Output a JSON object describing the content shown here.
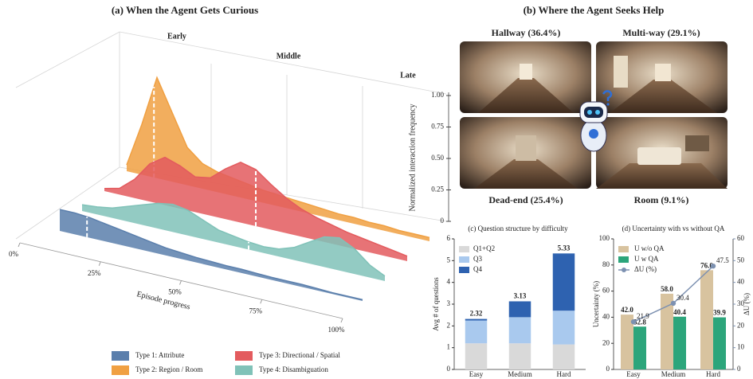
{
  "chart_data": [
    {
      "type": "ridge",
      "title": "(a) When the Agent Gets Curious",
      "x_label": "Episode progress",
      "y_label": "Normalized interaction frequency",
      "annotations": [
        "Early",
        "Middle",
        "Late"
      ],
      "x": [
        0,
        5,
        10,
        15,
        20,
        25,
        30,
        35,
        40,
        45,
        50,
        55,
        60,
        65,
        70,
        75,
        80,
        85,
        90,
        95,
        100
      ],
      "xlim": [
        0,
        100
      ],
      "xticks": [
        {
          "value": 0,
          "label": "0%"
        },
        {
          "value": 25,
          "label": "25%"
        },
        {
          "value": 50,
          "label": "50%"
        },
        {
          "value": 75,
          "label": "75%"
        },
        {
          "value": 100,
          "label": "100%"
        }
      ],
      "ylim": [
        0,
        1
      ],
      "yticks": [
        0,
        0.25,
        {
          "value": 0.5,
          "label": "0.50"
        },
        0.75,
        {
          "value": 1,
          "label": "1.00"
        }
      ],
      "series": [
        {
          "name": "Type 1: Attribute",
          "color": "#5b7fac",
          "median": 9,
          "values": [
            0.17,
            0.17,
            0.16,
            0.14,
            0.12,
            0.1,
            0.08,
            0.06,
            0.05,
            0.04,
            0.035,
            0.03,
            0.03,
            0.025,
            0.02,
            0.02,
            0.02,
            0.015,
            0.01,
            0.01,
            0.01
          ]
        },
        {
          "name": "Type 2: Region / Room",
          "color": "#f0a042",
          "median": 9,
          "values": [
            0.05,
            0.4,
            0.8,
            0.55,
            0.3,
            0.2,
            0.16,
            0.14,
            0.12,
            0.1,
            0.09,
            0.08,
            0.07,
            0.06,
            0.05,
            0.05,
            0.04,
            0.04,
            0.03,
            0.03,
            0.03
          ]
        },
        {
          "name": "Type 3: Directional / Spatial",
          "color": "#e35b5e",
          "median": 50,
          "values": [
            0.02,
            0.05,
            0.15,
            0.3,
            0.38,
            0.34,
            0.28,
            0.3,
            0.4,
            0.48,
            0.45,
            0.36,
            0.28,
            0.22,
            0.18,
            0.15,
            0.12,
            0.1,
            0.08,
            0.06,
            0.04
          ]
        },
        {
          "name": "Type 4: Disambiguation",
          "color": "#80c2b8",
          "median": 55,
          "values": [
            0.05,
            0.06,
            0.08,
            0.12,
            0.16,
            0.2,
            0.22,
            0.2,
            0.15,
            0.1,
            0.08,
            0.06,
            0.05,
            0.06,
            0.1,
            0.17,
            0.24,
            0.26,
            0.2,
            0.1,
            0.04
          ]
        }
      ]
    },
    {
      "type": "stacked_bar",
      "title": "(c) Question structure by difficulty",
      "y_label": "Avg # of questions",
      "categories": [
        "Easy",
        "Medium",
        "Hard"
      ],
      "ylim": [
        0,
        6
      ],
      "yticks": [
        0,
        1,
        2,
        3,
        4,
        5,
        6
      ],
      "totals": [
        2.32,
        3.13,
        5.33
      ],
      "series": [
        {
          "name": "Q1+Q2",
          "color": "#d9d9d9",
          "values": [
            1.2,
            1.2,
            1.15
          ]
        },
        {
          "name": "Q3",
          "color": "#a9c9ee",
          "values": [
            1.05,
            1.2,
            1.55
          ]
        },
        {
          "name": "Q4",
          "color": "#2e62b0",
          "values": [
            0.07,
            0.73,
            2.63
          ]
        }
      ]
    },
    {
      "type": "bar_line",
      "title": "(d) Uncertainty with vs without QA",
      "y_label": "Uncertainty (%)",
      "y2_label": "ΔU (%)",
      "categories": [
        "Easy",
        "Medium",
        "Hard"
      ],
      "ylim": [
        0,
        100
      ],
      "yticks": [
        0,
        20,
        40,
        60,
        80,
        100
      ],
      "y2lim": [
        0,
        60
      ],
      "y2ticks": [
        0,
        10,
        20,
        30,
        40,
        50,
        60
      ],
      "series": [
        {
          "name": "U w/o QA",
          "color": "#d8c39f",
          "label_color": "#222222",
          "values": [
            42,
            58,
            76
          ],
          "value_labels": [
            "42.0",
            "58.0",
            "76.0"
          ]
        },
        {
          "name": "U w QA",
          "color": "#2ca57b",
          "label_color": "#1f7f5c",
          "values": [
            32.8,
            40.4,
            39.9
          ]
        },
        {
          "name": "ΔU (%)",
          "color": "#7d91b1",
          "label_color": "#7d91b1",
          "axis": "y2",
          "values": [
            21.9,
            30.4,
            47.5
          ]
        }
      ]
    }
  ],
  "panel_b": {
    "title": "(b) Where the Agent Seeks Help",
    "images": [
      {
        "label": "Hallway (36.4%)"
      },
      {
        "label": "Multi-way (29.1%)"
      },
      {
        "label": "Dead-end (25.4%)"
      },
      {
        "label": "Room (9.1%)"
      }
    ]
  }
}
